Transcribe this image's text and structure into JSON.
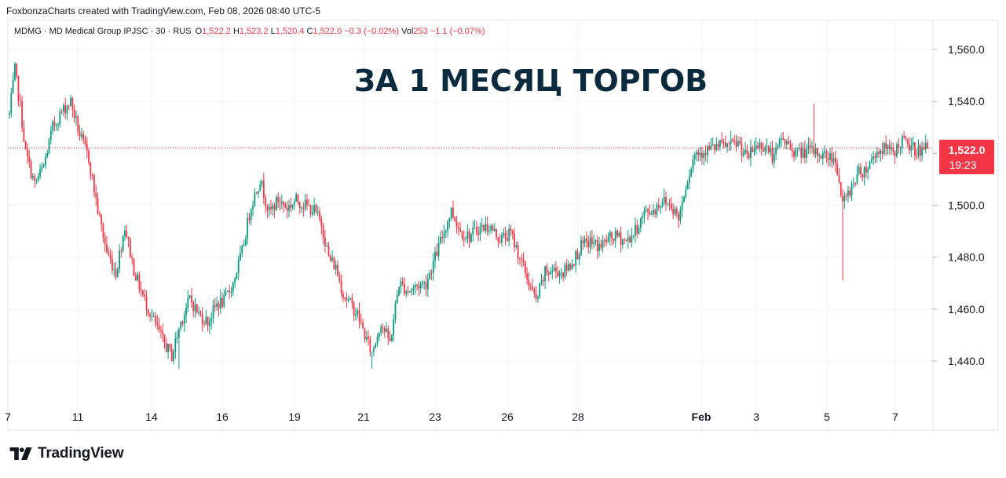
{
  "header": {
    "attribution": "FoxbonzaCharts created with TradingView.com, Feb 08, 2026 08:40 UTC-5"
  },
  "legend": {
    "symbol": "MDMG · MD Medical Group IPJSC · 30 · RUS",
    "o_label": "O",
    "o_value": "1,522.2",
    "h_label": "H",
    "h_value": "1,523.2",
    "l_label": "L",
    "l_value": "1,520.4",
    "c_label": "C",
    "c_value": "1,522.0",
    "change": "−0.3 (−0.02%)",
    "vol_label": "Vol",
    "vol_value": "253",
    "vol_change": "−1.1 (−0.07%)"
  },
  "overlay_title": "ЗА 1 МЕСЯЦ ТОРГОВ",
  "price_badge": {
    "price": "1,522.0",
    "countdown": "19:23"
  },
  "brand": {
    "name": "TradingView"
  },
  "colors": {
    "up": "#089981",
    "down": "#f23645",
    "grid": "#f0f3fa",
    "text": "#131722",
    "title": "#0b2a3d"
  },
  "chart_data": {
    "type": "candlestick",
    "title": "ЗА 1 МЕСЯЦ ТОРГОВ",
    "interval": "30",
    "last_price": 1522.0,
    "ylim": [
      1426,
      1566
    ],
    "y_ticks": [
      "1,440.0",
      "1,460.0",
      "1,480.0",
      "1,500.0",
      "1,520.0",
      "1,540.0",
      "1,560.0"
    ],
    "y_tick_values": [
      1440,
      1460,
      1480,
      1500,
      1520,
      1540,
      1560
    ],
    "x_tick_labels": [
      "7",
      "11",
      "14",
      "16",
      "19",
      "21",
      "23",
      "26",
      "28",
      "Feb",
      "3",
      "5",
      "7"
    ],
    "x_tick_bold": [
      false,
      false,
      false,
      false,
      false,
      false,
      false,
      false,
      false,
      true,
      false,
      false,
      false
    ],
    "grid": true,
    "key_points": [
      [
        0,
        1535
      ],
      [
        3,
        1552
      ],
      [
        6,
        1538
      ],
      [
        9,
        1520
      ],
      [
        14,
        1508
      ],
      [
        19,
        1515
      ],
      [
        24,
        1530
      ],
      [
        29,
        1536
      ],
      [
        34,
        1540
      ],
      [
        39,
        1527
      ],
      [
        44,
        1518
      ],
      [
        49,
        1498
      ],
      [
        54,
        1482
      ],
      [
        59,
        1474
      ],
      [
        64,
        1492
      ],
      [
        69,
        1475
      ],
      [
        74,
        1465
      ],
      [
        79,
        1457
      ],
      [
        85,
        1448
      ],
      [
        90,
        1442
      ],
      [
        95,
        1455
      ],
      [
        100,
        1464
      ],
      [
        105,
        1458
      ],
      [
        110,
        1455
      ],
      [
        115,
        1462
      ],
      [
        119,
        1463
      ],
      [
        124,
        1470
      ],
      [
        129,
        1482
      ],
      [
        134,
        1500
      ],
      [
        139,
        1510
      ],
      [
        144,
        1497
      ],
      [
        149,
        1502
      ],
      [
        154,
        1499
      ],
      [
        159,
        1502
      ],
      [
        164,
        1500
      ],
      [
        169,
        1498
      ],
      [
        173,
        1493
      ],
      [
        177,
        1480
      ],
      [
        181,
        1476
      ],
      [
        185,
        1466
      ],
      [
        189,
        1462
      ],
      [
        193,
        1458
      ],
      [
        197,
        1450
      ],
      [
        201,
        1443
      ],
      [
        206,
        1455
      ],
      [
        211,
        1447
      ],
      [
        216,
        1470
      ],
      [
        221,
        1467
      ],
      [
        226,
        1469
      ],
      [
        231,
        1470
      ],
      [
        235,
        1478
      ],
      [
        240,
        1488
      ],
      [
        245,
        1498
      ],
      [
        250,
        1490
      ],
      [
        255,
        1488
      ],
      [
        260,
        1491
      ],
      [
        266,
        1492
      ],
      [
        272,
        1487
      ],
      [
        278,
        1489
      ],
      [
        283,
        1480
      ],
      [
        287,
        1472
      ],
      [
        292,
        1463
      ],
      [
        297,
        1474
      ],
      [
        302,
        1475
      ],
      [
        307,
        1474
      ],
      [
        312,
        1478
      ],
      [
        317,
        1484
      ],
      [
        322,
        1486
      ],
      [
        327,
        1484
      ],
      [
        332,
        1487
      ],
      [
        337,
        1488
      ],
      [
        342,
        1486
      ],
      [
        347,
        1490
      ],
      [
        352,
        1497
      ],
      [
        357,
        1498
      ],
      [
        362,
        1502
      ],
      [
        367,
        1500
      ],
      [
        371,
        1495
      ],
      [
        375,
        1508
      ],
      [
        380,
        1520
      ],
      [
        385,
        1521
      ],
      [
        390,
        1522
      ],
      [
        395,
        1523
      ],
      [
        400,
        1523
      ],
      [
        404,
        1524
      ],
      [
        409,
        1518
      ],
      [
        414,
        1523
      ],
      [
        419,
        1523
      ],
      [
        424,
        1518
      ],
      [
        428,
        1526
      ],
      [
        433,
        1522
      ],
      [
        438,
        1520
      ],
      [
        443,
        1521
      ],
      [
        448,
        1520
      ],
      [
        453,
        1519
      ],
      [
        458,
        1518
      ],
      [
        462,
        1500
      ],
      [
        466,
        1506
      ],
      [
        470,
        1512
      ],
      [
        475,
        1514
      ],
      [
        480,
        1520
      ],
      [
        485,
        1522
      ],
      [
        490,
        1520
      ],
      [
        495,
        1525
      ],
      [
        500,
        1522
      ],
      [
        505,
        1521
      ],
      [
        509,
        1522
      ]
    ]
  }
}
